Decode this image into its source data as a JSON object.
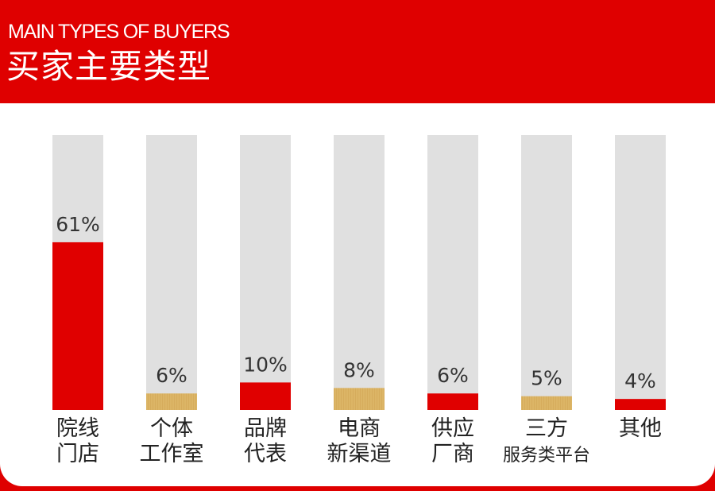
{
  "header": {
    "subtitle": "MAIN TYPES OF BUYERS",
    "title": "买家主要类型"
  },
  "colors": {
    "background": "#df0000",
    "panel": "#ffffff",
    "track": "#e0e0e0",
    "red_bar": "#e00000",
    "gold_bar": "#dcb566"
  },
  "chart_data": {
    "type": "bar",
    "title": "买家主要类型",
    "subtitle": "MAIN TYPES OF BUYERS",
    "ylim": [
      0,
      100
    ],
    "grid": false,
    "categories": [
      [
        "院线",
        "门店"
      ],
      [
        "个体",
        "工作室"
      ],
      [
        "品牌",
        "代表"
      ],
      [
        "电商",
        "新渠道"
      ],
      [
        "供应",
        "厂商"
      ],
      [
        "三方",
        "服务类平台"
      ],
      [
        "其他"
      ]
    ],
    "values": [
      61,
      6,
      10,
      8,
      6,
      5,
      4
    ],
    "labels": [
      "61%",
      "6%",
      "10%",
      "8%",
      "6%",
      "5%",
      "4%"
    ],
    "bar_colors": [
      "red",
      "gold",
      "red",
      "gold",
      "red",
      "gold",
      "red"
    ]
  }
}
